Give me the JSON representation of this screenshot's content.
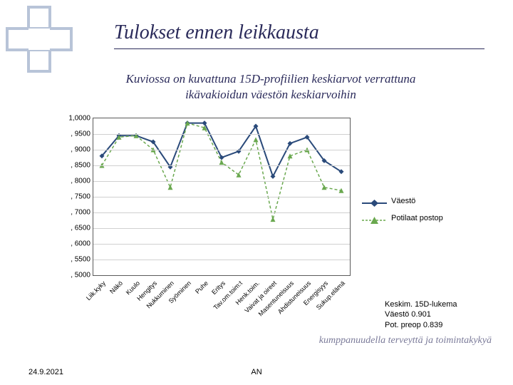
{
  "title": "Tulokset ennen leikkausta",
  "subtitle_line1": "Kuviossa on kuvattuna 15D-profiilien keskiarvot verrattuna",
  "subtitle_line2": "ikävakioidun väestön keskiarvoihin",
  "footer": {
    "date": "24.9.2021",
    "center": "AN",
    "slogan": "kumppanuudella terveyttä ja toimintakykyä"
  },
  "stats": {
    "title": "Keskim. 15D-lukema",
    "row1": "Väestö   0.901",
    "row2": "Pot. preop  0.839"
  },
  "chart": {
    "type": "line",
    "ylim": [
      0.5,
      1.0
    ],
    "ytick_step": 0.05,
    "ytick_labels": [
      "1,0000",
      ", 9500",
      ", 9000",
      ", 8500",
      ", 8000",
      ", 7500",
      ", 7000",
      ", 6500",
      ", 6000",
      ", 5500",
      ", 5000"
    ],
    "ytick_values": [
      1.0,
      0.95,
      0.9,
      0.85,
      0.8,
      0.75,
      0.7,
      0.65,
      0.6,
      0.55,
      0.5
    ],
    "grid_color": "#d0d0d0",
    "background_color": "#ffffff",
    "border_color": "#5a5a5a",
    "categories": [
      "Liik.kyky",
      "Näkö",
      "Kuulo",
      "Hengitys",
      "Nukkuminen",
      "Syöminen",
      "Puhe",
      "Eritys",
      "Tav.om.toim:t",
      "Henk.toim.",
      "Vaivat ja oireet",
      "Masentuneisuus",
      "Ahdistuneisuus",
      "Energisyys",
      "Sukup.elämä"
    ],
    "legend": {
      "series1_label": "Väestö",
      "series2_label": "Potilaat postop"
    },
    "series": [
      {
        "name": "Väestö",
        "color": "#2a4a7a",
        "line_width": 2,
        "line_style": "solid",
        "marker": "diamond",
        "marker_size": 7,
        "marker_fill": "#2a4a7a",
        "values": [
          0.88,
          0.945,
          0.945,
          0.925,
          0.845,
          0.985,
          0.985,
          0.875,
          0.895,
          0.975,
          0.815,
          0.92,
          0.94,
          0.865,
          0.83
        ]
      },
      {
        "name": "Potilaat postop",
        "color": "#6aa84f",
        "line_width": 1.5,
        "line_style": "dashed",
        "marker": "triangle",
        "marker_size": 7,
        "marker_fill": "#6aa84f",
        "values": [
          0.85,
          0.94,
          0.945,
          0.9,
          0.78,
          0.985,
          0.97,
          0.86,
          0.82,
          0.932,
          0.678,
          0.88,
          0.9,
          0.78,
          0.77
        ]
      }
    ]
  }
}
